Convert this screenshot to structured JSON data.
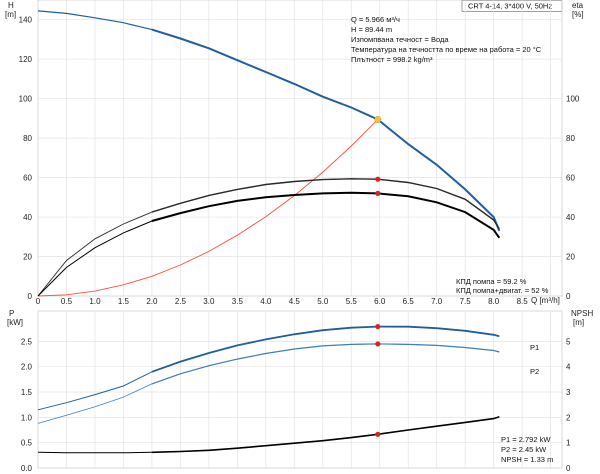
{
  "header": {
    "model": "CRT 4-14, 3*400 V, 50Hz"
  },
  "colors": {
    "pump_curve": "#1f5fa0",
    "system_curve": "#ff4d3d",
    "efficiency_pump": "#2a2a2a",
    "efficiency_total": "#000000",
    "p1": "#1f5fa0",
    "p2": "#3f7fbf",
    "npsh": "#000000",
    "duty_point_marker": "#f2c23a",
    "marker": "#e02020",
    "grid": "#e3e3e3"
  },
  "chart_data": [
    {
      "type": "line",
      "axes": {
        "left": {
          "label_top": "H",
          "label_unit": "[m]",
          "ylim": [
            0,
            150
          ],
          "ticks": [
            "0",
            "20",
            "40",
            "60",
            "80",
            "100",
            "120",
            "140"
          ]
        },
        "right": {
          "label_top": "eta",
          "label_unit": "[%]",
          "ylim": [
            0,
            150
          ],
          "ticks": [
            "0",
            "20",
            "40",
            "60",
            "80",
            "100"
          ]
        },
        "x": {
          "label": "Q [m³/h]",
          "xlim": [
            0,
            9.2
          ],
          "ticks": [
            "0",
            "0.5",
            "1.0",
            "1.5",
            "2.0",
            "2.5",
            "3.0",
            "3.5",
            "4.0",
            "4.5",
            "5.0",
            "5.5",
            "6.0",
            "6.5",
            "7.0",
            "7.5",
            "8.0",
            "8.5"
          ]
        }
      },
      "grid": true,
      "series": [
        {
          "key": "head",
          "axis": "left",
          "x": [
            0,
            0.5,
            1.0,
            1.5,
            2.0,
            2.5,
            3.0,
            3.5,
            4.0,
            4.5,
            5.0,
            5.5,
            5.966,
            6.5,
            7.0,
            7.5,
            8.0,
            8.1
          ],
          "values": [
            144.5,
            143.2,
            141,
            138.5,
            135,
            130.5,
            125.5,
            119.5,
            113.5,
            107.5,
            101,
            95.5,
            89.44,
            77,
            66.5,
            54,
            40,
            33
          ]
        },
        {
          "key": "system",
          "axis": "left",
          "x": [
            0,
            0.5,
            1.0,
            1.5,
            2.0,
            2.5,
            3.0,
            3.5,
            4.0,
            4.5,
            5.0,
            5.5,
            5.966
          ],
          "values": [
            0,
            0.6,
            2.5,
            5.7,
            10,
            15.7,
            22.6,
            30.8,
            40.2,
            50.9,
            62.8,
            76,
            89.44
          ]
        },
        {
          "key": "eta_pump",
          "axis": "right",
          "x": [
            0,
            0.5,
            1.0,
            1.5,
            2.0,
            2.5,
            3.0,
            3.5,
            4.0,
            4.5,
            5.0,
            5.5,
            5.966,
            6.5,
            7.0,
            7.5,
            8.0,
            8.1
          ],
          "values": [
            0,
            18,
            29,
            36.5,
            42.5,
            47,
            51,
            54,
            56.5,
            58,
            59,
            59.4,
            59.2,
            57.5,
            54.5,
            49,
            38.5,
            34
          ]
        },
        {
          "key": "eta_total",
          "axis": "right",
          "x": [
            0,
            0.5,
            1.0,
            1.5,
            2.0,
            2.5,
            3.0,
            3.5,
            4.0,
            4.5,
            5.0,
            5.5,
            5.966,
            6.5,
            7.0,
            7.5,
            8.0,
            8.1
          ],
          "values": [
            0,
            14.5,
            24.5,
            32,
            38,
            42,
            45.5,
            48.2,
            50,
            51.2,
            52,
            52.3,
            52,
            50.5,
            47.5,
            42.5,
            33.5,
            29.5
          ]
        }
      ],
      "annotations": {
        "duty": [
          "Q = 5.966 м³/ч",
          "H = 89.44 m",
          "Изпомпвана течност = Вода",
          "Температура на течността по време на работа = 20 °C",
          "Плътност = 998.2 kg/m³"
        ],
        "eta": [
          "КПД помпа = 59.2 %",
          "КПД помпа+двигат. = 52 %"
        ]
      },
      "duty_point": {
        "x": 5.966,
        "h": 89.44,
        "eta_pump": 59.2,
        "eta_total": 52
      }
    },
    {
      "type": "line",
      "axes": {
        "left": {
          "label_top": "P",
          "label_unit": "[kW]",
          "ylim": [
            0,
            3.1
          ],
          "ticks": [
            "0.0",
            "0.5",
            "1.0",
            "1.5",
            "2.0",
            "2.5"
          ]
        },
        "right": {
          "label_top": "NPSH",
          "label_unit": "[m]",
          "ylim": [
            0,
            6.2
          ],
          "ticks": [
            "0",
            "1",
            "2",
            "3",
            "4",
            "5"
          ]
        },
        "x": {
          "xlim": [
            0,
            9.2
          ]
        }
      },
      "grid": true,
      "series": [
        {
          "key": "p1",
          "name": "P1",
          "axis": "left",
          "x": [
            0,
            0.5,
            1.0,
            1.5,
            2.0,
            2.5,
            3.0,
            3.5,
            4.0,
            4.5,
            5.0,
            5.5,
            5.966,
            6.5,
            7.0,
            7.5,
            8.0,
            8.1
          ],
          "values": [
            1.15,
            1.29,
            1.45,
            1.62,
            1.9,
            2.1,
            2.27,
            2.42,
            2.54,
            2.64,
            2.72,
            2.77,
            2.792,
            2.79,
            2.76,
            2.71,
            2.63,
            2.6
          ]
        },
        {
          "key": "p2",
          "name": "P2",
          "axis": "left",
          "x": [
            0,
            0.5,
            1.0,
            1.5,
            2.0,
            2.5,
            3.0,
            3.5,
            4.0,
            4.5,
            5.0,
            5.5,
            5.966,
            6.5,
            7.0,
            7.5,
            8.0,
            8.1
          ],
          "values": [
            0.88,
            1.04,
            1.21,
            1.4,
            1.66,
            1.86,
            2.02,
            2.15,
            2.26,
            2.35,
            2.41,
            2.44,
            2.45,
            2.44,
            2.42,
            2.38,
            2.32,
            2.29
          ]
        },
        {
          "key": "npsh",
          "axis": "right",
          "x": [
            0,
            0.5,
            1.0,
            1.5,
            2.0,
            2.5,
            3.0,
            3.5,
            4.0,
            4.5,
            5.0,
            5.5,
            5.966,
            6.5,
            7.0,
            7.5,
            8.0,
            8.1
          ],
          "values": [
            0.62,
            0.6,
            0.6,
            0.6,
            0.62,
            0.65,
            0.7,
            0.78,
            0.88,
            0.98,
            1.08,
            1.2,
            1.33,
            1.5,
            1.65,
            1.8,
            1.95,
            2.02
          ]
        }
      ],
      "annotations": {
        "values": [
          "P1 = 2.792 kW",
          "P2 = 2.45 kW",
          "NPSH = 1.33 m"
        ]
      },
      "duty_point": {
        "x": 5.966,
        "p1": 2.792,
        "p2": 2.45,
        "npsh": 1.33
      }
    }
  ]
}
